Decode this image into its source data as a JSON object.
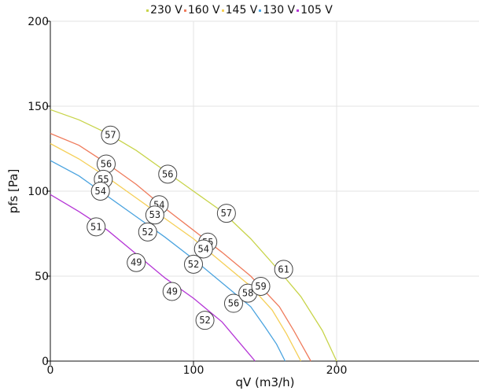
{
  "chart_data": {
    "type": "line",
    "xlabel": "qV (m3/h)",
    "ylabel": "pfs [Pa]",
    "xlim": [
      0,
      300
    ],
    "ylim": [
      0,
      200
    ],
    "x_ticks": [
      0,
      100,
      200
    ],
    "y_ticks": [
      0,
      50,
      100,
      150,
      200
    ],
    "grid": true,
    "legend_position": "top-center",
    "series": [
      {
        "name": "230 V",
        "color": "#c8d44a",
        "x": [
          0,
          20,
          40,
          60,
          80,
          100,
          120,
          140,
          160,
          175,
          190,
          200
        ],
        "y": [
          148,
          142,
          134,
          124,
          112,
          100,
          88,
          72,
          53,
          38,
          18,
          0
        ]
      },
      {
        "name": "160 V",
        "color": "#ef7b5c",
        "x": [
          0,
          20,
          40,
          60,
          80,
          100,
          120,
          140,
          160,
          170,
          182
        ],
        "y": [
          134,
          127,
          116,
          104,
          90,
          77,
          64,
          50,
          32,
          18,
          0
        ]
      },
      {
        "name": "145 V",
        "color": "#f5cf57",
        "x": [
          0,
          20,
          40,
          60,
          80,
          100,
          120,
          140,
          155,
          165,
          175
        ],
        "y": [
          128,
          119,
          108,
          96,
          84,
          72,
          58,
          44,
          30,
          16,
          0
        ]
      },
      {
        "name": "130 V",
        "color": "#4aa3df",
        "x": [
          0,
          20,
          40,
          60,
          80,
          100,
          120,
          140,
          150,
          158,
          164
        ],
        "y": [
          118,
          109,
          97,
          85,
          73,
          60,
          46,
          32,
          20,
          10,
          0
        ]
      },
      {
        "name": "105 V",
        "color": "#b536d6",
        "x": [
          0,
          20,
          40,
          60,
          80,
          100,
          120,
          130,
          138,
          143
        ],
        "y": [
          98,
          88,
          77,
          63,
          49,
          37,
          23,
          13,
          5,
          0
        ]
      }
    ],
    "annotations": [
      {
        "text": "57",
        "x": 42,
        "y": 133
      },
      {
        "text": "56",
        "x": 39,
        "y": 116
      },
      {
        "text": "55",
        "x": 37,
        "y": 107
      },
      {
        "text": "54",
        "x": 35,
        "y": 100
      },
      {
        "text": "51",
        "x": 32,
        "y": 79
      },
      {
        "text": "56",
        "x": 82,
        "y": 110
      },
      {
        "text": "54",
        "x": 76,
        "y": 92
      },
      {
        "text": "53",
        "x": 73,
        "y": 86
      },
      {
        "text": "52",
        "x": 68,
        "y": 76
      },
      {
        "text": "49",
        "x": 60,
        "y": 58
      },
      {
        "text": "49",
        "x": 85,
        "y": 41
      },
      {
        "text": "55",
        "x": 110,
        "y": 70
      },
      {
        "text": "54",
        "x": 107,
        "y": 66
      },
      {
        "text": "52",
        "x": 100,
        "y": 57
      },
      {
        "text": "57",
        "x": 123,
        "y": 87
      },
      {
        "text": "52",
        "x": 108,
        "y": 24
      },
      {
        "text": "56",
        "x": 128,
        "y": 34
      },
      {
        "text": "58",
        "x": 138,
        "y": 40
      },
      {
        "text": "59",
        "x": 147,
        "y": 44
      },
      {
        "text": "61",
        "x": 163,
        "y": 54
      }
    ]
  }
}
